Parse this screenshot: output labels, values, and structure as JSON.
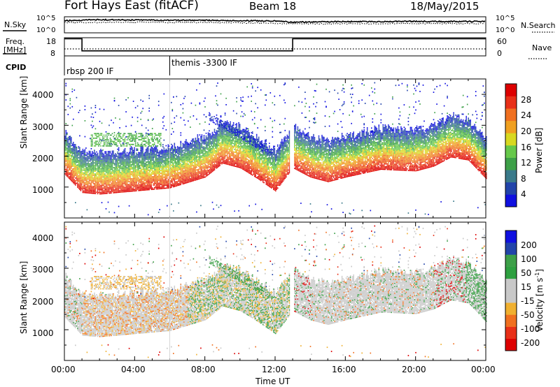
{
  "header": {
    "station": "Fort Hays East (fitACF)",
    "beam": "Beam 18",
    "date": "18/May/2015"
  },
  "noise_panel": {
    "left_label": "N.Sky",
    "left_ticks": [
      "10^5",
      "10^0"
    ],
    "right_label": "N.Search",
    "right_ticks": [
      "10^5",
      "10^0"
    ]
  },
  "freq_panel": {
    "left_label_line1": "Freq.",
    "left_label_line2": "[MHz]",
    "left_ticks": [
      "18",
      "8"
    ],
    "right_label": "Nave",
    "right_ticks": [
      "60",
      "0"
    ]
  },
  "cpid": {
    "label": "CPID",
    "segments": [
      {
        "text": "rbsp 200 IF",
        "start_hour": 0
      },
      {
        "text": "themis -3300 IF",
        "start_hour": 6
      }
    ]
  },
  "colors": {
    "power_scale": [
      "#1010e0",
      "#2244aa",
      "#3a7a8a",
      "#3da048",
      "#66c84a",
      "#d8d820",
      "#f0a020",
      "#f07020",
      "#e83018",
      "#dd0000"
    ],
    "velocity_scale": [
      "#dd0000",
      "#e83018",
      "#f07020",
      "#f0b030",
      "#c8c8c8",
      "#c8c8c8",
      "#2ea040",
      "#3da048",
      "#2244aa",
      "#1010e0"
    ],
    "ground_scatter": "#c0c0c0"
  },
  "chart_data": [
    {
      "type": "line",
      "title": "N.Sky / N.Search",
      "x_range_hours": [
        0,
        24
      ],
      "series": [
        {
          "name": "N.Sky",
          "x": [
            0,
            2,
            4,
            6,
            8,
            10,
            12,
            13,
            14,
            16,
            18,
            20,
            22,
            24
          ],
          "y": [
            3.8,
            4.1,
            4.0,
            3.9,
            3.9,
            3.8,
            3.7,
            3.3,
            3.4,
            3.5,
            3.5,
            3.6,
            3.5,
            3.6
          ]
        },
        {
          "name": "N.Search",
          "x": [
            0,
            4,
            8,
            12,
            13,
            16,
            20,
            24
          ],
          "y": [
            3.2,
            3.3,
            3.2,
            3.0,
            2.8,
            2.8,
            2.9,
            2.9
          ]
        }
      ]
    },
    {
      "type": "line",
      "title": "Freq. / Nave",
      "x_range_hours": [
        0,
        24
      ],
      "series": [
        {
          "name": "Freq.",
          "x": [
            0,
            1,
            1,
            13,
            13,
            24
          ],
          "y": [
            18,
            18,
            10.5,
            10.5,
            18,
            18
          ]
        },
        {
          "name": "Nave",
          "x": [
            0,
            24
          ],
          "y": [
            23,
            23
          ]
        }
      ]
    },
    {
      "type": "heatmap",
      "title": "Power",
      "xlabel": "Time UT",
      "ylabel": "Slant Range [km]",
      "x_range_hours": [
        0,
        24
      ],
      "ylim": [
        0,
        4500
      ],
      "xticks": [
        "00:00",
        "04:00",
        "08:00",
        "12:00",
        "16:00",
        "20:00",
        "00:00"
      ],
      "yticks": [
        1000,
        2000,
        3000,
        4000
      ],
      "colorbar": {
        "label": "Power [dB]",
        "ticks": [
          4,
          8,
          12,
          16,
          20,
          24,
          28
        ]
      },
      "band_center_km": {
        "x": [
          0,
          1,
          2,
          4,
          6,
          8,
          9,
          10,
          11,
          12,
          13,
          14,
          15,
          16,
          18,
          20,
          21,
          22,
          23,
          24
        ],
        "y": [
          1950,
          1350,
          1300,
          1400,
          1500,
          1850,
          2300,
          2150,
          1800,
          1400,
          2150,
          1850,
          1700,
          1850,
          2100,
          2050,
          2200,
          2500,
          2400,
          1800
        ]
      }
    },
    {
      "type": "heatmap",
      "title": "Velocity",
      "xlabel": "Time UT",
      "ylabel": "Slant Range [km]",
      "x_range_hours": [
        0,
        24
      ],
      "ylim": [
        0,
        4500
      ],
      "xticks": [
        "00:00",
        "04:00",
        "08:00",
        "12:00",
        "16:00",
        "20:00",
        "00:00"
      ],
      "yticks": [
        1000,
        2000,
        3000,
        4000
      ],
      "colorbar": {
        "label": "Velocity [m s^-1]",
        "ticks": [
          200,
          100,
          50,
          15,
          -15,
          -50,
          -100,
          -200
        ]
      }
    }
  ],
  "axis": {
    "xlabel": "Time UT",
    "xticks": [
      "00:00",
      "04:00",
      "08:00",
      "12:00",
      "16:00",
      "20:00",
      "00:00"
    ],
    "yticks": [
      "1000",
      "2000",
      "3000",
      "4000"
    ],
    "ylabel": "Slant Range [km]"
  },
  "colorbars": {
    "power": {
      "label": "Power [dB]",
      "ticks": [
        "28",
        "24",
        "20",
        "16",
        "12",
        "8",
        "4"
      ]
    },
    "velocity": {
      "label_main": "Velocity [m s",
      "label_sup": "-1",
      "label_end": "]",
      "ticks": [
        "200",
        "100",
        "50",
        "15",
        "-15",
        "-50",
        "-100",
        "-200"
      ]
    }
  }
}
